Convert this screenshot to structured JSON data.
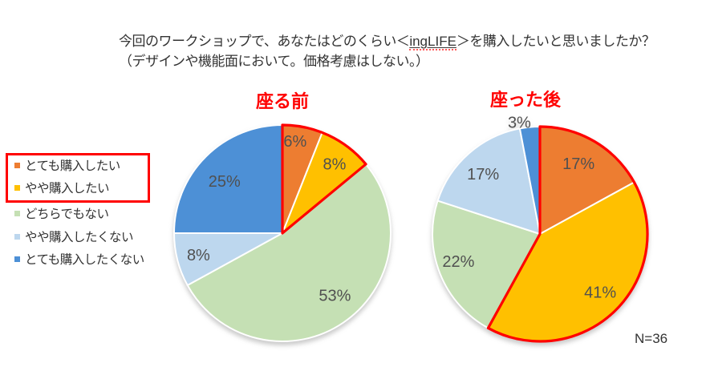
{
  "title": {
    "line1_pre": "今回のワークショップで、あなたはどのくらい＜",
    "line1_brand": "ingLIFE",
    "line1_post": "＞を購入したいと思いましたか？",
    "line2": "（デザインや機能面において。価格考慮はしない。）"
  },
  "legend": {
    "items": [
      {
        "label": "とても購入したい",
        "color": "#ED7D31",
        "highlighted": true
      },
      {
        "label": "やや購入したい",
        "color": "#FFC000",
        "highlighted": true
      },
      {
        "label": "どちらでもない",
        "color": "#C5E0B4",
        "highlighted": false
      },
      {
        "label": "やや購入したくない",
        "color": "#BDD7EE",
        "highlighted": false
      },
      {
        "label": "とても購入したくない",
        "color": "#4D90D6",
        "highlighted": false
      }
    ],
    "highlight_box_color": "#FF0000"
  },
  "chart_data": [
    {
      "type": "pie",
      "title": "座る前",
      "title_color": "#FF0000",
      "categories": [
        "とても購入したい",
        "やや購入したい",
        "どちらでもない",
        "やや購入したくない",
        "とても購入したくない"
      ],
      "values": [
        6,
        8,
        53,
        8,
        25
      ],
      "labels": [
        "6%",
        "8%",
        "53%",
        "8%",
        "25%"
      ],
      "colors": [
        "#ED7D31",
        "#FFC000",
        "#C5E0B4",
        "#BDD7EE",
        "#4D90D6"
      ],
      "start_angle_deg": 0,
      "direction": "clockwise",
      "slice_border_color": "#FFFFFF",
      "label_color": "#505050",
      "highlighted_slices": [
        0,
        1
      ],
      "highlight_outline_color": "#FF0000"
    },
    {
      "type": "pie",
      "title": "座った後",
      "title_color": "#FF0000",
      "categories": [
        "とても購入したい",
        "やや購入したい",
        "どちらでもない",
        "やや購入したくない",
        "とても購入したくない"
      ],
      "values": [
        17,
        41,
        22,
        17,
        3
      ],
      "labels": [
        "17%",
        "41%",
        "22%",
        "17%",
        "3%"
      ],
      "colors": [
        "#ED7D31",
        "#FFC000",
        "#C5E0B4",
        "#BDD7EE",
        "#4D90D6"
      ],
      "start_angle_deg": 0,
      "direction": "clockwise",
      "slice_border_color": "#FFFFFF",
      "label_color": "#505050",
      "highlighted_slices": [
        0,
        1
      ],
      "highlight_outline_color": "#FF0000"
    }
  ],
  "footnote": "N=36"
}
